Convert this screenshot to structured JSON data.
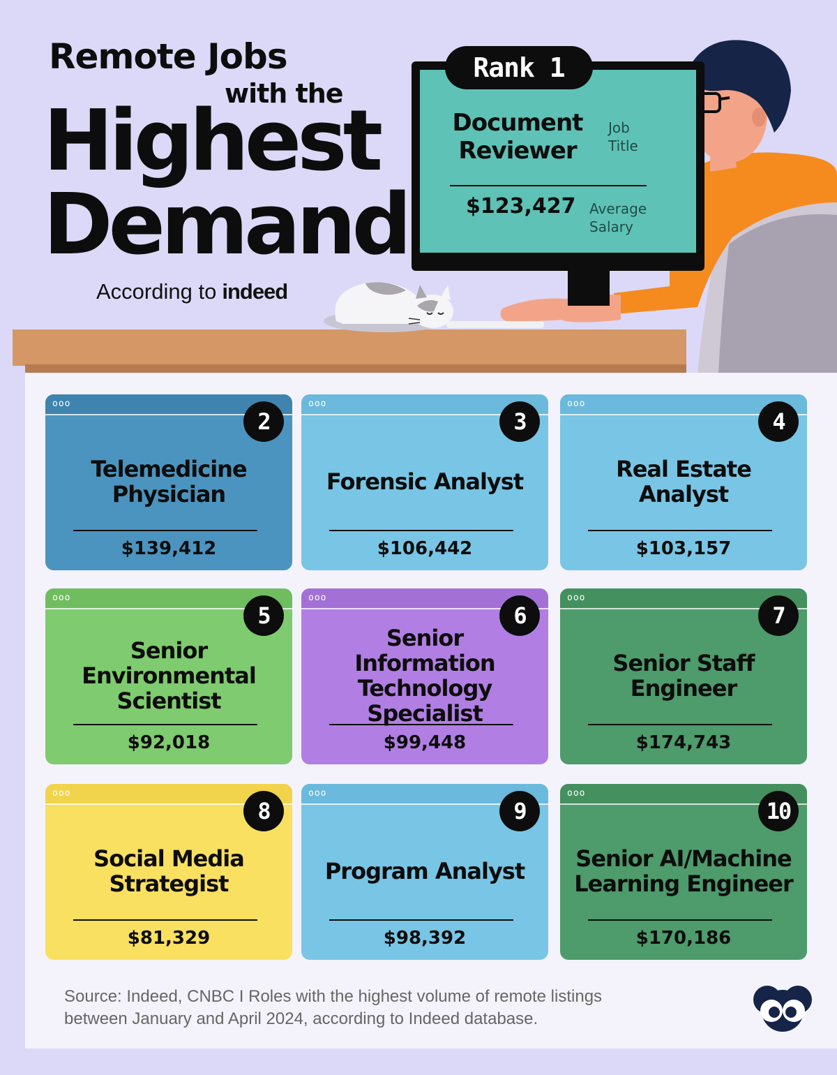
{
  "title": {
    "line1": "Remote Jobs",
    "line2": "with the",
    "line3": "Highest",
    "line4": "Demand"
  },
  "according": {
    "prefix": "According to",
    "brand": "indeed"
  },
  "rank1": {
    "rank_label": "Rank 1",
    "job_title": "Document Reviewer",
    "job_title_label": "Job Title",
    "salary": "$123,427",
    "salary_label": "Average Salary"
  },
  "cards": [
    {
      "rank": "2",
      "title": "Telemedicine Physician",
      "salary": "$139,412",
      "color": "#4b94bf"
    },
    {
      "rank": "3",
      "title": "Forensic Analyst",
      "salary": "$106,442",
      "color": "#79c5e5"
    },
    {
      "rank": "4",
      "title": "Real Estate Analyst",
      "salary": "$103,157",
      "color": "#79c5e5"
    },
    {
      "rank": "5",
      "title": "Senior Environmental Scientist",
      "salary": "$92,018",
      "color": "#7fcb6f"
    },
    {
      "rank": "6",
      "title": "Senior Information Technology Specialist",
      "salary": "$99,448",
      "color": "#b17fe3"
    },
    {
      "rank": "7",
      "title": "Senior Staff Engineer",
      "salary": "$174,743",
      "color": "#4e9b6c"
    },
    {
      "rank": "8",
      "title": "Social Media Strategist",
      "salary": "$81,329",
      "color": "#f9e060"
    },
    {
      "rank": "9",
      "title": "Program Analyst",
      "salary": "$98,392",
      "color": "#79c5e5"
    },
    {
      "rank": "10",
      "title": "Senior AI/Machine Learning Engineer",
      "salary": "$170,186",
      "color": "#4e9b6c"
    }
  ],
  "window_dots": "ooo",
  "source": {
    "line1": "Source: Indeed, CNBC I Roles with the highest volume of remote listings",
    "line2": "between January and April 2024, according to Indeed database."
  },
  "icons": {
    "logo": "visual-capitalist-logo-icon",
    "cat": "sleeping-cat-icon",
    "person": "person-at-computer-icon"
  }
}
